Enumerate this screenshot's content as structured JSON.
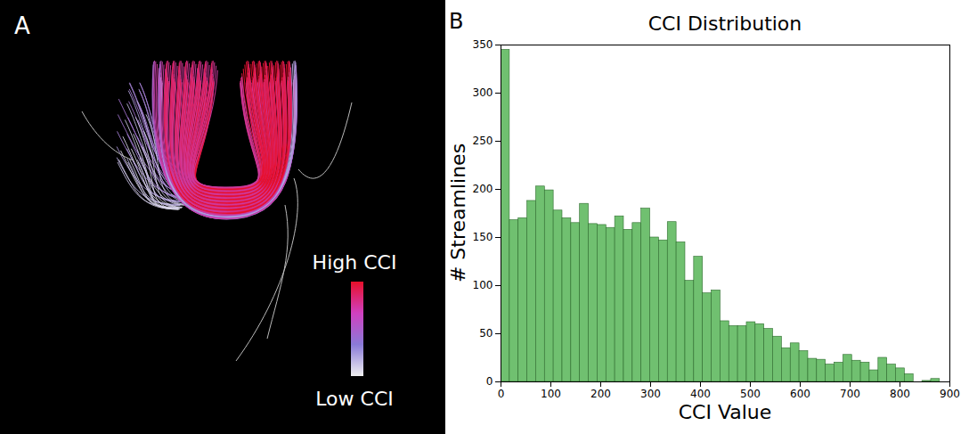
{
  "panel_a": {
    "panel_label": "A",
    "colorbar": {
      "labels": [
        "High CCI",
        "Low CCI"
      ],
      "colors": [
        "#e8102a",
        "#d040c0",
        "#8a7ad8",
        "#f0f0f0"
      ]
    }
  },
  "chart_data": {
    "type": "histogram",
    "panel_label": "B",
    "title": "CCI Distribution",
    "x_label": "CCI Value",
    "y_label": "# Streamlines",
    "bins": [
      0,
      17.6,
      35.2,
      52.8,
      70.4,
      88,
      105.6,
      123.2,
      140.8,
      158.4,
      176,
      193.6,
      211.2,
      228.8,
      246.4,
      264,
      281.6,
      299.2,
      316.8,
      334.4,
      352,
      369.6,
      387.2,
      404.8,
      422.4,
      440,
      457.6,
      475.2,
      492.8,
      510.4,
      528,
      545.6,
      563.2,
      580.8,
      598.4,
      616,
      633.6,
      651.2,
      668.8,
      686.4,
      704,
      721.6,
      739.2,
      756.8,
      774.4,
      792,
      809.6,
      827.2,
      844.8,
      862.4,
      880
    ],
    "values": [
      345,
      168,
      170,
      188,
      203,
      199,
      178,
      170,
      165,
      185,
      164,
      163,
      160,
      172,
      158,
      165,
      180,
      150,
      147,
      166,
      145,
      105,
      130,
      92,
      95,
      63,
      58,
      58,
      62,
      60,
      55,
      47,
      35,
      40,
      32,
      24,
      23,
      18,
      20,
      28,
      22,
      20,
      12,
      25,
      18,
      14,
      8,
      0,
      1,
      3
    ],
    "color": "#70c070",
    "xlim": [
      0,
      900
    ],
    "xticks": [
      0,
      100,
      200,
      300,
      400,
      500,
      600,
      700,
      800,
      900
    ],
    "ylim": [
      0,
      350
    ],
    "yticks": [
      0,
      50,
      100,
      150,
      200,
      250,
      300,
      350
    ],
    "grid": false
  }
}
